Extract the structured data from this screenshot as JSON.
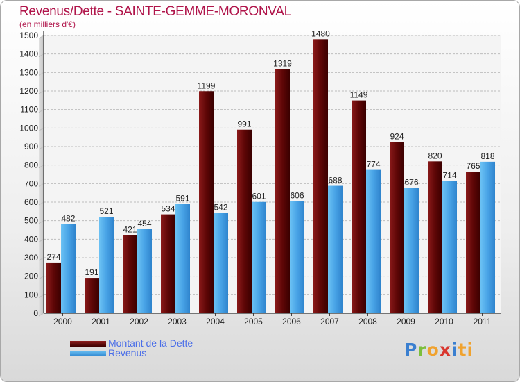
{
  "chart_data": {
    "type": "bar",
    "title": "Revenus/Dette - SAINTE-GEMME-MORONVAL",
    "subtitle": "(en milliers d'€)",
    "xlabel": "",
    "ylabel": "",
    "ylim": [
      0,
      1500
    ],
    "yticks": [
      0,
      100,
      200,
      300,
      400,
      500,
      600,
      700,
      800,
      900,
      1000,
      1100,
      1200,
      1300,
      1400,
      1500
    ],
    "categories": [
      "2000",
      "2001",
      "2002",
      "2003",
      "2004",
      "2005",
      "2006",
      "2007",
      "2008",
      "2009",
      "2010",
      "2011"
    ],
    "series": [
      {
        "name": "Montant de la Dette",
        "color": "#6e0e0e",
        "values": [
          274,
          191,
          421,
          534,
          1199,
          991,
          1319,
          1480,
          1149,
          924,
          820,
          765
        ]
      },
      {
        "name": "Revenus",
        "color": "#4aa3e6",
        "values": [
          482,
          521,
          454,
          591,
          542,
          601,
          606,
          688,
          774,
          676,
          714,
          818
        ]
      }
    ],
    "legend_position": "bottom-left"
  },
  "brand": {
    "letters": [
      "P",
      "r",
      "o",
      "x",
      "i",
      "ti"
    ]
  }
}
